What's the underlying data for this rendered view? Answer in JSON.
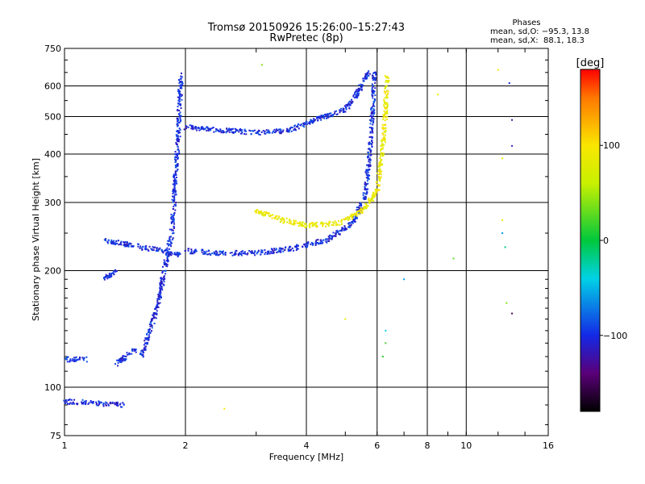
{
  "header": {
    "title_line1": "Tromsø 20150926 15:26:00–15:27:43",
    "title_line2": "RwPretec (8p)"
  },
  "phases_box": {
    "title": "Phases",
    "line_o": "mean, sd,O: −95.3, 13.8",
    "line_x": "mean, sd,X:  88.1, 18.3"
  },
  "colorbar": {
    "label": "[deg]",
    "ticks": [
      {
        "value": 100,
        "label": "100"
      },
      {
        "value": 0,
        "label": "0"
      },
      {
        "value": -100,
        "label": "−100"
      }
    ],
    "range": [
      -180,
      180
    ]
  },
  "chart_data": {
    "type": "scatter",
    "xlabel": "Frequency [MHz]",
    "ylabel": "Stationary phase Virtual Height [km]",
    "xscale": "log",
    "yscale": "log",
    "xlim": [
      1,
      16
    ],
    "ylim": [
      75,
      750
    ],
    "x_ticks": [
      {
        "value": 1,
        "label": "1"
      },
      {
        "value": 2,
        "label": "2"
      },
      {
        "value": 4,
        "label": "4"
      },
      {
        "value": 6,
        "label": "6"
      },
      {
        "value": 8,
        "label": "8"
      },
      {
        "value": 10,
        "label": "10"
      },
      {
        "value": 16,
        "label": "16"
      }
    ],
    "y_ticks": [
      {
        "value": 750,
        "label": "750"
      },
      {
        "value": 600,
        "label": "600"
      },
      {
        "value": 500,
        "label": "500"
      },
      {
        "value": 400,
        "label": "400"
      },
      {
        "value": 300,
        "label": "300"
      },
      {
        "value": 200,
        "label": "200"
      },
      {
        "value": 100,
        "label": "100"
      },
      {
        "value": 75,
        "label": "75"
      }
    ],
    "grid_x": [
      2,
      4,
      6,
      8,
      10
    ],
    "grid_y": [
      100,
      200,
      300,
      400,
      500,
      600
    ],
    "color_encoding": "phase (deg)",
    "traces": [
      {
        "mode": "O",
        "segment": "F-region trace (main)",
        "points": [
          [
            1.25,
            1.55,
            240,
            230
          ],
          [
            1.55,
            1.75,
            230,
            225
          ],
          [
            1.75,
            1.95,
            225,
            220
          ],
          [
            2.0,
            2.4,
            225,
            222
          ],
          [
            2.4,
            3.0,
            222,
            222
          ],
          [
            3.0,
            3.7,
            222,
            228
          ],
          [
            3.7,
            4.5,
            228,
            240
          ],
          [
            4.5,
            5.2,
            240,
            265
          ],
          [
            5.2,
            5.6,
            265,
            310
          ],
          [
            5.6,
            5.75,
            310,
            400
          ],
          [
            5.75,
            5.85,
            400,
            520
          ],
          [
            5.85,
            5.9,
            520,
            650
          ]
        ],
        "phase": -100
      },
      {
        "mode": "O",
        "segment": "upper echo",
        "points": [
          [
            2.0,
            2.5,
            470,
            460
          ],
          [
            2.5,
            3.0,
            460,
            455
          ],
          [
            3.0,
            3.6,
            455,
            460
          ],
          [
            3.6,
            4.2,
            460,
            490
          ],
          [
            4.2,
            5.0,
            490,
            520
          ],
          [
            5.0,
            5.5,
            520,
            600
          ],
          [
            5.5,
            5.7,
            600,
            650
          ]
        ],
        "phase": -100
      },
      {
        "mode": "X",
        "segment": "X trace",
        "points": [
          [
            3.0,
            3.5,
            285,
            270
          ],
          [
            3.5,
            4.0,
            270,
            262
          ],
          [
            4.0,
            4.8,
            262,
            265
          ],
          [
            4.8,
            5.5,
            265,
            285
          ],
          [
            5.5,
            6.0,
            285,
            320
          ],
          [
            6.0,
            6.2,
            320,
            420
          ],
          [
            6.2,
            6.3,
            420,
            520
          ],
          [
            6.3,
            6.35,
            520,
            630
          ]
        ],
        "phase": 88
      },
      {
        "mode": "O",
        "segment": "E/spread column near 1.9 MHz",
        "points": [
          [
            1.55,
            1.7,
            120,
            160
          ],
          [
            1.7,
            1.85,
            160,
            250
          ],
          [
            1.85,
            1.92,
            250,
            450
          ],
          [
            1.92,
            1.95,
            450,
            640
          ]
        ],
        "phase": -100
      },
      {
        "mode": "O",
        "segment": "low echoes",
        "points": [
          [
            1.0,
            1.15,
            118,
            118
          ],
          [
            1.0,
            1.4,
            92,
            90
          ],
          [
            1.35,
            1.5,
            115,
            125
          ],
          [
            1.25,
            1.35,
            190,
            200
          ]
        ],
        "phase": -100
      }
    ]
  }
}
